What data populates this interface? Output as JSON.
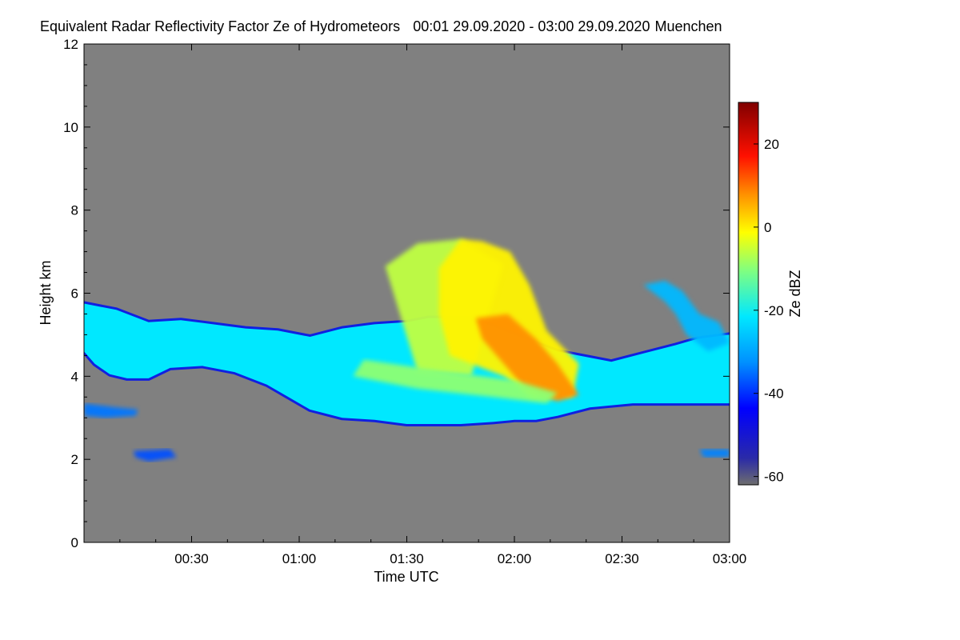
{
  "chart_data": {
    "type": "heatmap",
    "title": "Equivalent Radar Reflectivity Factor Ze of Hydrometeors",
    "time_range": "00:01 29.09.2020 - 03:00 29.09.2020",
    "location": "Muenchen",
    "xlabel": "Time UTC",
    "ylabel": "Height km",
    "x_start_hours": 0.017,
    "x_end_hours": 3.0,
    "xlim": [
      0.0,
      3.0
    ],
    "ylim": [
      0,
      12
    ],
    "x_ticks": [
      {
        "value": 0.5,
        "label": "00:30"
      },
      {
        "value": 1.0,
        "label": "01:00"
      },
      {
        "value": 1.5,
        "label": "01:30"
      },
      {
        "value": 2.0,
        "label": "02:00"
      },
      {
        "value": 2.5,
        "label": "02:30"
      },
      {
        "value": 3.0,
        "label": "03:00"
      }
    ],
    "y_ticks": [
      {
        "value": 0,
        "label": "0"
      },
      {
        "value": 2,
        "label": "2"
      },
      {
        "value": 4,
        "label": "4"
      },
      {
        "value": 6,
        "label": "6"
      },
      {
        "value": 8,
        "label": "8"
      },
      {
        "value": 10,
        "label": "10"
      },
      {
        "value": 12,
        "label": "12"
      }
    ],
    "colorbar": {
      "label": "Ze dBZ",
      "range": [
        -62,
        30
      ],
      "ticks": [
        {
          "value": 20,
          "label": "20"
        },
        {
          "value": 0,
          "label": "0"
        },
        {
          "value": -20,
          "label": "-20"
        },
        {
          "value": -40,
          "label": "-40"
        },
        {
          "value": -60,
          "label": "-60"
        }
      ]
    },
    "background_color": "#808080",
    "features": [
      {
        "name": "main stratiform cloud layer",
        "polygon": [
          [
            0.0,
            5.75
          ],
          [
            0.15,
            5.6
          ],
          [
            0.3,
            5.3
          ],
          [
            0.45,
            5.35
          ],
          [
            0.6,
            5.25
          ],
          [
            0.75,
            5.15
          ],
          [
            0.9,
            5.1
          ],
          [
            1.05,
            4.95
          ],
          [
            1.2,
            5.15
          ],
          [
            1.35,
            5.25
          ],
          [
            1.5,
            5.3
          ],
          [
            1.6,
            5.4
          ],
          [
            1.8,
            5.4
          ],
          [
            2.2,
            4.6
          ],
          [
            2.45,
            4.35
          ],
          [
            2.6,
            4.55
          ],
          [
            2.75,
            4.75
          ],
          [
            2.85,
            4.9
          ],
          [
            3.0,
            5.0
          ],
          [
            3.0,
            3.35
          ],
          [
            2.55,
            3.35
          ],
          [
            2.35,
            3.25
          ],
          [
            2.2,
            3.05
          ],
          [
            2.1,
            2.95
          ],
          [
            2.0,
            2.95
          ],
          [
            1.9,
            2.9
          ],
          [
            1.75,
            2.85
          ],
          [
            1.6,
            2.85
          ],
          [
            1.5,
            2.85
          ],
          [
            1.35,
            2.95
          ],
          [
            1.2,
            3.0
          ],
          [
            1.05,
            3.2
          ],
          [
            0.95,
            3.5
          ],
          [
            0.85,
            3.8
          ],
          [
            0.7,
            4.1
          ],
          [
            0.55,
            4.25
          ],
          [
            0.4,
            4.2
          ],
          [
            0.3,
            3.95
          ],
          [
            0.2,
            3.95
          ],
          [
            0.12,
            4.05
          ],
          [
            0.05,
            4.3
          ],
          [
            0.0,
            4.6
          ]
        ],
        "ze_dbz": -22
      },
      {
        "name": "fall streak 1",
        "polygon": [
          [
            1.4,
            6.65
          ],
          [
            1.55,
            7.2
          ],
          [
            1.75,
            7.3
          ],
          [
            1.95,
            6.7
          ],
          [
            1.8,
            4.0
          ],
          [
            1.55,
            4.1
          ]
        ],
        "ze_dbz": -6
      },
      {
        "name": "fall streak 2",
        "polygon": [
          [
            1.85,
            7.25
          ],
          [
            1.98,
            7.0
          ],
          [
            2.07,
            6.2
          ],
          [
            2.15,
            5.1
          ],
          [
            2.3,
            4.3
          ],
          [
            2.27,
            3.5
          ],
          [
            2.08,
            3.5
          ],
          [
            1.95,
            4.0
          ],
          [
            1.7,
            4.5
          ],
          [
            1.65,
            5.5
          ],
          [
            1.65,
            6.6
          ],
          [
            1.75,
            7.3
          ]
        ],
        "ze_dbz": 0
      },
      {
        "name": "peak reflectivity core",
        "polygon": [
          [
            1.97,
            5.5
          ],
          [
            2.1,
            4.9
          ],
          [
            2.2,
            4.3
          ],
          [
            2.3,
            3.55
          ],
          [
            2.2,
            3.4
          ],
          [
            2.05,
            3.7
          ],
          [
            1.95,
            4.3
          ],
          [
            1.85,
            4.9
          ],
          [
            1.82,
            5.4
          ]
        ],
        "ze_dbz": 8
      },
      {
        "name": "lower band near base",
        "polygon": [
          [
            1.3,
            4.4
          ],
          [
            1.7,
            4.1
          ],
          [
            2.0,
            3.9
          ],
          [
            2.2,
            3.6
          ],
          [
            2.15,
            3.35
          ],
          [
            1.9,
            3.5
          ],
          [
            1.55,
            3.7
          ],
          [
            1.25,
            4.0
          ]
        ],
        "ze_dbz": -10
      },
      {
        "name": "right side cell",
        "polygon": [
          [
            2.6,
            6.2
          ],
          [
            2.7,
            6.3
          ],
          [
            2.78,
            6.05
          ],
          [
            2.86,
            5.5
          ],
          [
            2.95,
            5.3
          ],
          [
            3.0,
            4.8
          ],
          [
            2.9,
            4.6
          ],
          [
            2.8,
            5.0
          ],
          [
            2.75,
            5.5
          ],
          [
            2.7,
            5.8
          ]
        ],
        "ze_dbz": -28
      },
      {
        "name": "low cloud fragment left",
        "polygon": [
          [
            0.0,
            3.35
          ],
          [
            0.15,
            3.25
          ],
          [
            0.25,
            3.2
          ],
          [
            0.24,
            3.05
          ],
          [
            0.1,
            3.0
          ],
          [
            0.0,
            3.05
          ]
        ],
        "ze_dbz": -35
      },
      {
        "name": "low cloud fragment mid-left",
        "polygon": [
          [
            0.23,
            2.2
          ],
          [
            0.4,
            2.25
          ],
          [
            0.43,
            2.05
          ],
          [
            0.3,
            1.95
          ],
          [
            0.24,
            2.05
          ]
        ],
        "ze_dbz": -38
      },
      {
        "name": "low cloud fragment right",
        "polygon": [
          [
            2.86,
            2.25
          ],
          [
            3.0,
            2.25
          ],
          [
            3.0,
            2.05
          ],
          [
            2.88,
            2.05
          ]
        ],
        "ze_dbz": -34
      }
    ]
  }
}
